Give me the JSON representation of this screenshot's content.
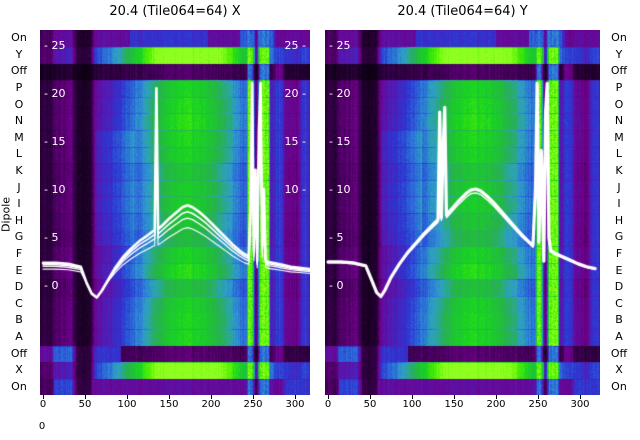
{
  "figure": {
    "bg": "#ffffff"
  },
  "dipole_axis": {
    "label": "Dipole",
    "rows": [
      {
        "label": "On",
        "kind": "on"
      },
      {
        "label": "Y",
        "kind": "bright"
      },
      {
        "label": "Off",
        "kind": "off"
      },
      {
        "label": "P",
        "kind": "normal"
      },
      {
        "label": "O",
        "kind": "normal"
      },
      {
        "label": "N",
        "kind": "normal"
      },
      {
        "label": "M",
        "kind": "normal"
      },
      {
        "label": "L",
        "kind": "normal"
      },
      {
        "label": "K",
        "kind": "normal"
      },
      {
        "label": "J",
        "kind": "normal"
      },
      {
        "label": "I",
        "kind": "normal"
      },
      {
        "label": "H",
        "kind": "normal"
      },
      {
        "label": "G",
        "kind": "normal"
      },
      {
        "label": "F",
        "kind": "normal"
      },
      {
        "label": "E",
        "kind": "normal"
      },
      {
        "label": "D",
        "kind": "normal"
      },
      {
        "label": "C",
        "kind": "normal"
      },
      {
        "label": "B",
        "kind": "normal"
      },
      {
        "label": "A",
        "kind": "normal"
      },
      {
        "label": "Off",
        "kind": "off2"
      },
      {
        "label": "X",
        "kind": "bright"
      },
      {
        "label": "On",
        "kind": "on2"
      }
    ]
  },
  "extra_axis_tick": "0",
  "colormap": [
    [
      0.0,
      "#0a0010"
    ],
    [
      0.12,
      "#38004c"
    ],
    [
      0.22,
      "#6e0088"
    ],
    [
      0.32,
      "#5618b0"
    ],
    [
      0.42,
      "#2e35d2"
    ],
    [
      0.52,
      "#2b6fd8"
    ],
    [
      0.6,
      "#2fa0c8"
    ],
    [
      0.7,
      "#27b24a"
    ],
    [
      0.82,
      "#18d422"
    ],
    [
      0.92,
      "#55f200"
    ],
    [
      1.0,
      "#90ff20"
    ]
  ],
  "chart_data": [
    {
      "type": "heatmap",
      "title": "20.4 (Tile064=64) X",
      "x_ticks": [
        "0",
        "50",
        "100",
        "150",
        "200",
        "250",
        "300"
      ],
      "x_tick_values": [
        0,
        50,
        100,
        150,
        200,
        250,
        300
      ],
      "x_range": [
        0,
        325
      ],
      "value_tick_values": [
        25,
        20,
        15,
        10,
        5,
        0
      ],
      "value_tick_labels_left": [
        "- 25",
        "- 20",
        "- 15",
        "- 10",
        "- 5",
        "- 0"
      ],
      "value_tick_labels_right": [
        "25 -",
        "20 -",
        "15 -",
        "10 -"
      ],
      "rows_axis_label": "Dipole",
      "grid": false,
      "legend": false,
      "heatmap_features": {
        "gaussian": {
          "center": 0.55,
          "sigma": 0.26,
          "base": 0.16,
          "amp": 0.64
        },
        "dark_column": [
          0.115,
          0.205
        ],
        "green_stripes": [
          [
            0.762,
            0.792
          ],
          [
            0.806,
            0.852
          ]
        ],
        "stripe_gap": [
          0.792,
          0.806
        ],
        "post_stripe_blue": [
          0.858,
          0.908
        ],
        "right_edge_blue": [
          0.952,
          1.01
        ]
      },
      "overlay": {
        "name": "beam profile",
        "color": "#ffffff",
        "traces": [
          {
            "scale": 1.0,
            "width": 2.6
          },
          {
            "scale": 0.92,
            "width": 1.6
          },
          {
            "scale": 0.84,
            "width": 1.3
          },
          {
            "scale": 0.72,
            "width": 1.1
          }
        ],
        "points": [
          [
            0,
            2.3
          ],
          [
            15,
            2.3
          ],
          [
            30,
            2.2
          ],
          [
            45,
            1.9
          ],
          [
            52,
            0.2
          ],
          [
            58,
            -0.9
          ],
          [
            64,
            -1.3
          ],
          [
            70,
            -0.6
          ],
          [
            78,
            0.6
          ],
          [
            86,
            1.8
          ],
          [
            95,
            2.9
          ],
          [
            105,
            3.8
          ],
          [
            115,
            4.6
          ],
          [
            125,
            5.2
          ],
          [
            131,
            5.6
          ],
          [
            133,
            5.7
          ],
          [
            135,
            20.5
          ],
          [
            137,
            5.8
          ],
          [
            142,
            6.2
          ],
          [
            150,
            6.9
          ],
          [
            158,
            7.5
          ],
          [
            166,
            8.1
          ],
          [
            172,
            8.3
          ],
          [
            178,
            8.1
          ],
          [
            186,
            7.6
          ],
          [
            194,
            7.0
          ],
          [
            202,
            6.3
          ],
          [
            210,
            5.6
          ],
          [
            218,
            4.9
          ],
          [
            226,
            4.2
          ],
          [
            234,
            3.6
          ],
          [
            240,
            3.2
          ],
          [
            245,
            3.0
          ],
          [
            247,
            8.0
          ],
          [
            249,
            21.0
          ],
          [
            251,
            3.5
          ],
          [
            253,
            12.0
          ],
          [
            255,
            2.5
          ],
          [
            257,
            16.0
          ],
          [
            259,
            21.0
          ],
          [
            261,
            4.0
          ],
          [
            263,
            10.0
          ],
          [
            265,
            2.6
          ],
          [
            268,
            2.4
          ],
          [
            275,
            2.3
          ],
          [
            285,
            2.1
          ],
          [
            295,
            1.9
          ],
          [
            305,
            1.8
          ],
          [
            315,
            1.7
          ],
          [
            322,
            1.6
          ]
        ]
      }
    },
    {
      "type": "heatmap",
      "title": "20.4 (Tile064=64) Y",
      "x_ticks": [
        "0",
        "50",
        "100",
        "150",
        "200",
        "250",
        "300"
      ],
      "x_tick_values": [
        0,
        50,
        100,
        150,
        200,
        250,
        300
      ],
      "x_range": [
        0,
        325
      ],
      "value_tick_values": [
        25,
        20,
        15,
        10,
        5,
        0
      ],
      "value_tick_labels_left": [
        "- 25",
        "- 20",
        "- 15",
        "- 10",
        "- 5",
        "- 0"
      ],
      "value_tick_labels_right": [],
      "rows_axis_label": "Dipole",
      "grid": false,
      "legend": false,
      "heatmap_features": {
        "gaussian": {
          "center": 0.55,
          "sigma": 0.26,
          "base": 0.16,
          "amp": 0.64
        },
        "dark_column": [
          0.115,
          0.205
        ],
        "green_stripes": [
          [
            0.762,
            0.792
          ],
          [
            0.806,
            0.852
          ]
        ],
        "stripe_gap": [
          0.792,
          0.806
        ],
        "post_stripe_blue": [
          0.858,
          0.908
        ],
        "right_edge_blue": [
          0.952,
          1.01
        ]
      },
      "overlay": {
        "name": "beam profile",
        "color": "#ffffff",
        "traces": [
          {
            "scale": 1.0,
            "width": 3.2
          },
          {
            "scale": 0.96,
            "width": 1.4
          }
        ],
        "points": [
          [
            0,
            2.4
          ],
          [
            15,
            2.4
          ],
          [
            30,
            2.3
          ],
          [
            45,
            2.0
          ],
          [
            52,
            0.5
          ],
          [
            58,
            -0.8
          ],
          [
            63,
            -1.2
          ],
          [
            68,
            -0.5
          ],
          [
            75,
            0.8
          ],
          [
            85,
            2.2
          ],
          [
            95,
            3.4
          ],
          [
            105,
            4.4
          ],
          [
            115,
            5.4
          ],
          [
            125,
            6.3
          ],
          [
            131,
            6.8
          ],
          [
            133,
            18.0
          ],
          [
            135,
            7.0
          ],
          [
            137,
            14.0
          ],
          [
            139,
            18.5
          ],
          [
            141,
            7.3
          ],
          [
            148,
            8.0
          ],
          [
            156,
            8.8
          ],
          [
            164,
            9.5
          ],
          [
            170,
            9.9
          ],
          [
            176,
            10.0
          ],
          [
            182,
            9.8
          ],
          [
            190,
            9.2
          ],
          [
            198,
            8.5
          ],
          [
            206,
            7.7
          ],
          [
            214,
            6.9
          ],
          [
            222,
            6.1
          ],
          [
            230,
            5.3
          ],
          [
            238,
            4.6
          ],
          [
            244,
            4.1
          ],
          [
            247,
            10.0
          ],
          [
            249,
            21.0
          ],
          [
            251,
            4.5
          ],
          [
            254,
            14.0
          ],
          [
            257,
            2.5
          ],
          [
            259,
            18.0
          ],
          [
            261,
            21.0
          ],
          [
            263,
            5.0
          ],
          [
            265,
            3.6
          ],
          [
            270,
            3.3
          ],
          [
            278,
            3.0
          ],
          [
            288,
            2.6
          ],
          [
            298,
            2.2
          ],
          [
            308,
            1.9
          ],
          [
            318,
            1.7
          ]
        ]
      }
    }
  ]
}
